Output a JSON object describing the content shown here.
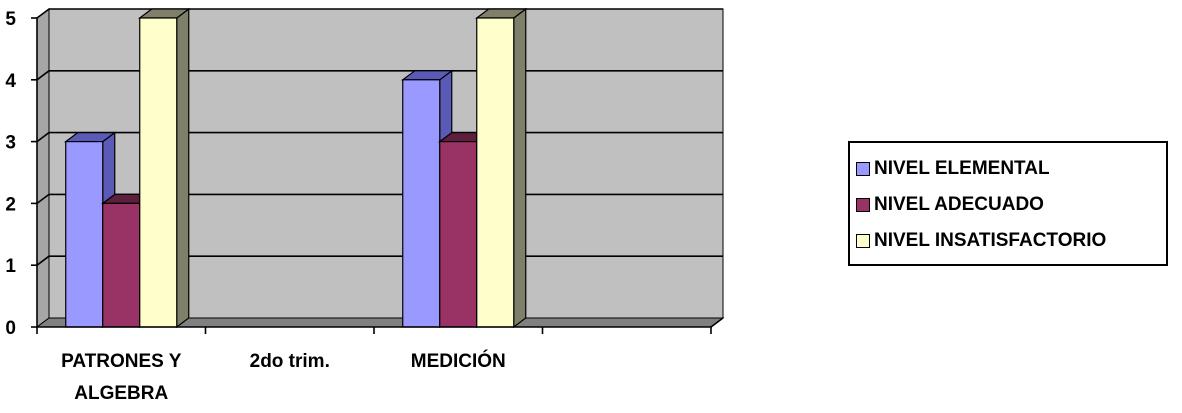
{
  "chart_data": {
    "type": "bar",
    "title": "",
    "xlabel": "",
    "ylabel": "",
    "categories": [
      "PATRONES Y ALGEBRA",
      "2do trim.",
      "MEDICIÓN",
      ""
    ],
    "category_label_lines": [
      [
        "PATRONES Y",
        "ALGEBRA"
      ],
      [
        "2do trim."
      ],
      [
        "MEDICIÓN"
      ],
      []
    ],
    "series": [
      {
        "name": "NIVEL ELEMENTAL",
        "values": [
          3,
          null,
          4,
          null
        ],
        "color": "#9999FF",
        "side_color": "#5B5BB7"
      },
      {
        "name": "NIVEL ADECUADO",
        "values": [
          2,
          null,
          3,
          null
        ],
        "color": "#993366",
        "side_color": "#5E1F3E"
      },
      {
        "name": "NIVEL INSATISFACTORIO",
        "values": [
          5,
          null,
          5,
          null
        ],
        "color": "#FFFFCC",
        "side_color": "#80806A"
      }
    ],
    "ylim": [
      0,
      5
    ],
    "yticks": [
      0,
      1,
      2,
      3,
      4,
      5
    ],
    "grid": true,
    "three_d": true,
    "legend_position": "right",
    "wall_color": "#C0C0C0",
    "floor_color": "#808080"
  }
}
